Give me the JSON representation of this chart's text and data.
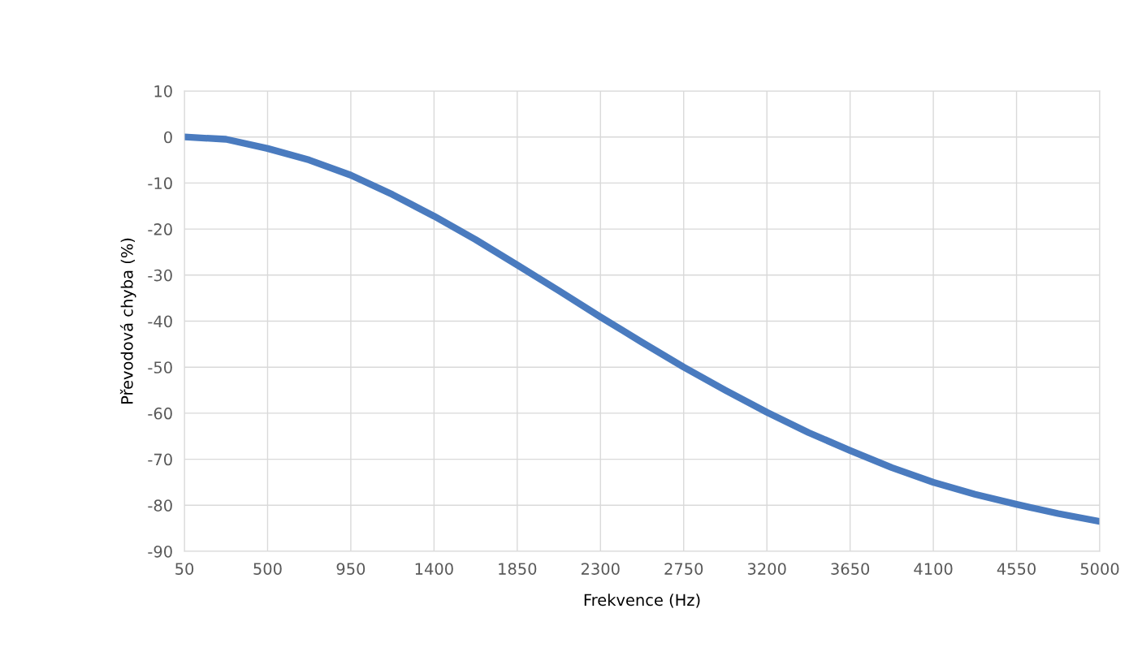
{
  "chart_data": {
    "type": "line",
    "xlabel": "Frekvence (Hz)",
    "ylabel": "Převodová chyba (%)",
    "x": [
      50,
      275,
      500,
      725,
      950,
      1175,
      1400,
      1625,
      1850,
      2075,
      2300,
      2525,
      2750,
      2975,
      3200,
      3425,
      3650,
      3875,
      4100,
      4325,
      4550,
      4775,
      5000
    ],
    "series": [
      {
        "color": "#4a7bbf",
        "values": [
          0,
          -0.5,
          -2.5,
          -5,
          -8.3,
          -12.5,
          -17.2,
          -22.3,
          -27.8,
          -33.4,
          -39.1,
          -44.6,
          -50,
          -55,
          -59.8,
          -64.2,
          -68.1,
          -71.8,
          -75,
          -77.6,
          -79.8,
          -81.8,
          -83.5
        ]
      }
    ],
    "xlim": [
      50,
      5000
    ],
    "xticks": [
      50,
      500,
      950,
      1400,
      1850,
      2300,
      2750,
      3200,
      3650,
      4100,
      4550,
      5000
    ],
    "ylim": [
      -90,
      10
    ],
    "yticks": [
      -90,
      -80,
      -70,
      -60,
      -50,
      -40,
      -30,
      -20,
      -10,
      0,
      10
    ],
    "grid": true,
    "legend": false,
    "marker": "none",
    "line_style": "solid"
  }
}
